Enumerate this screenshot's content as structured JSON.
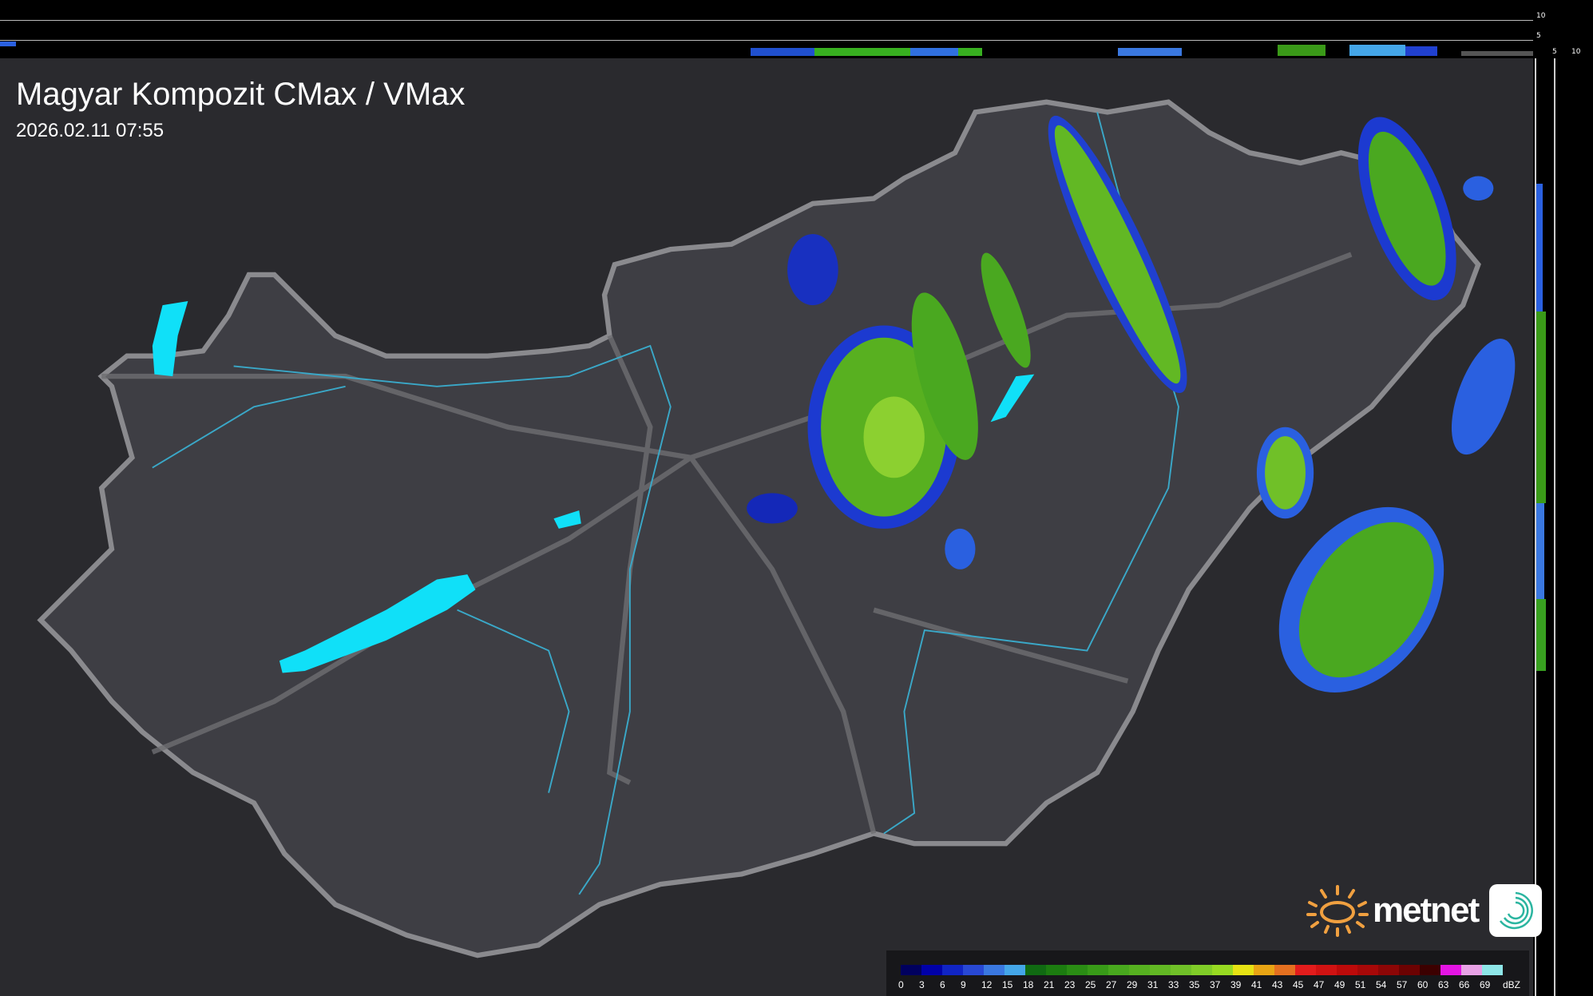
{
  "title": "Magyar Kompozit CMax / VMax",
  "timestamp": "2026.02.11 07:55",
  "profile_axes": {
    "top_ticks": [
      "10",
      "5"
    ],
    "right_ticks": [
      "5",
      "10"
    ]
  },
  "legend": {
    "unit": "dBZ",
    "labels": [
      "0",
      "3",
      "6",
      "9",
      "12",
      "15",
      "18",
      "21",
      "23",
      "25",
      "27",
      "29",
      "31",
      "33",
      "35",
      "37",
      "39",
      "41",
      "43",
      "45",
      "47",
      "49",
      "51",
      "54",
      "57",
      "60",
      "63",
      "66",
      "69"
    ],
    "colors": [
      "#00005e",
      "#0000a8",
      "#1024c4",
      "#2848d4",
      "#3a78e0",
      "#44a6e8",
      "#106a12",
      "#1c7c10",
      "#2a8c14",
      "#389a18",
      "#48a81e",
      "#56b020",
      "#62b824",
      "#70c028",
      "#80cc28",
      "#98da22",
      "#e6e214",
      "#e8a414",
      "#e47020",
      "#e21c1c",
      "#d01212",
      "#bc0a0a",
      "#a60808",
      "#8c0606",
      "#6c0202",
      "#3c0000",
      "#e414e4",
      "#e8a2e6",
      "#8ee6e8"
    ]
  },
  "logo": {
    "text": "metnet",
    "colors": {
      "sun": "#f0a040",
      "swirl": "#2bb5a0"
    }
  },
  "map_colors": {
    "background": "#2a2a2e",
    "country": "#3e3e44",
    "border": "#8a8a8e",
    "rivers": "#3aa8c8",
    "lakes": "#10e0f8"
  }
}
